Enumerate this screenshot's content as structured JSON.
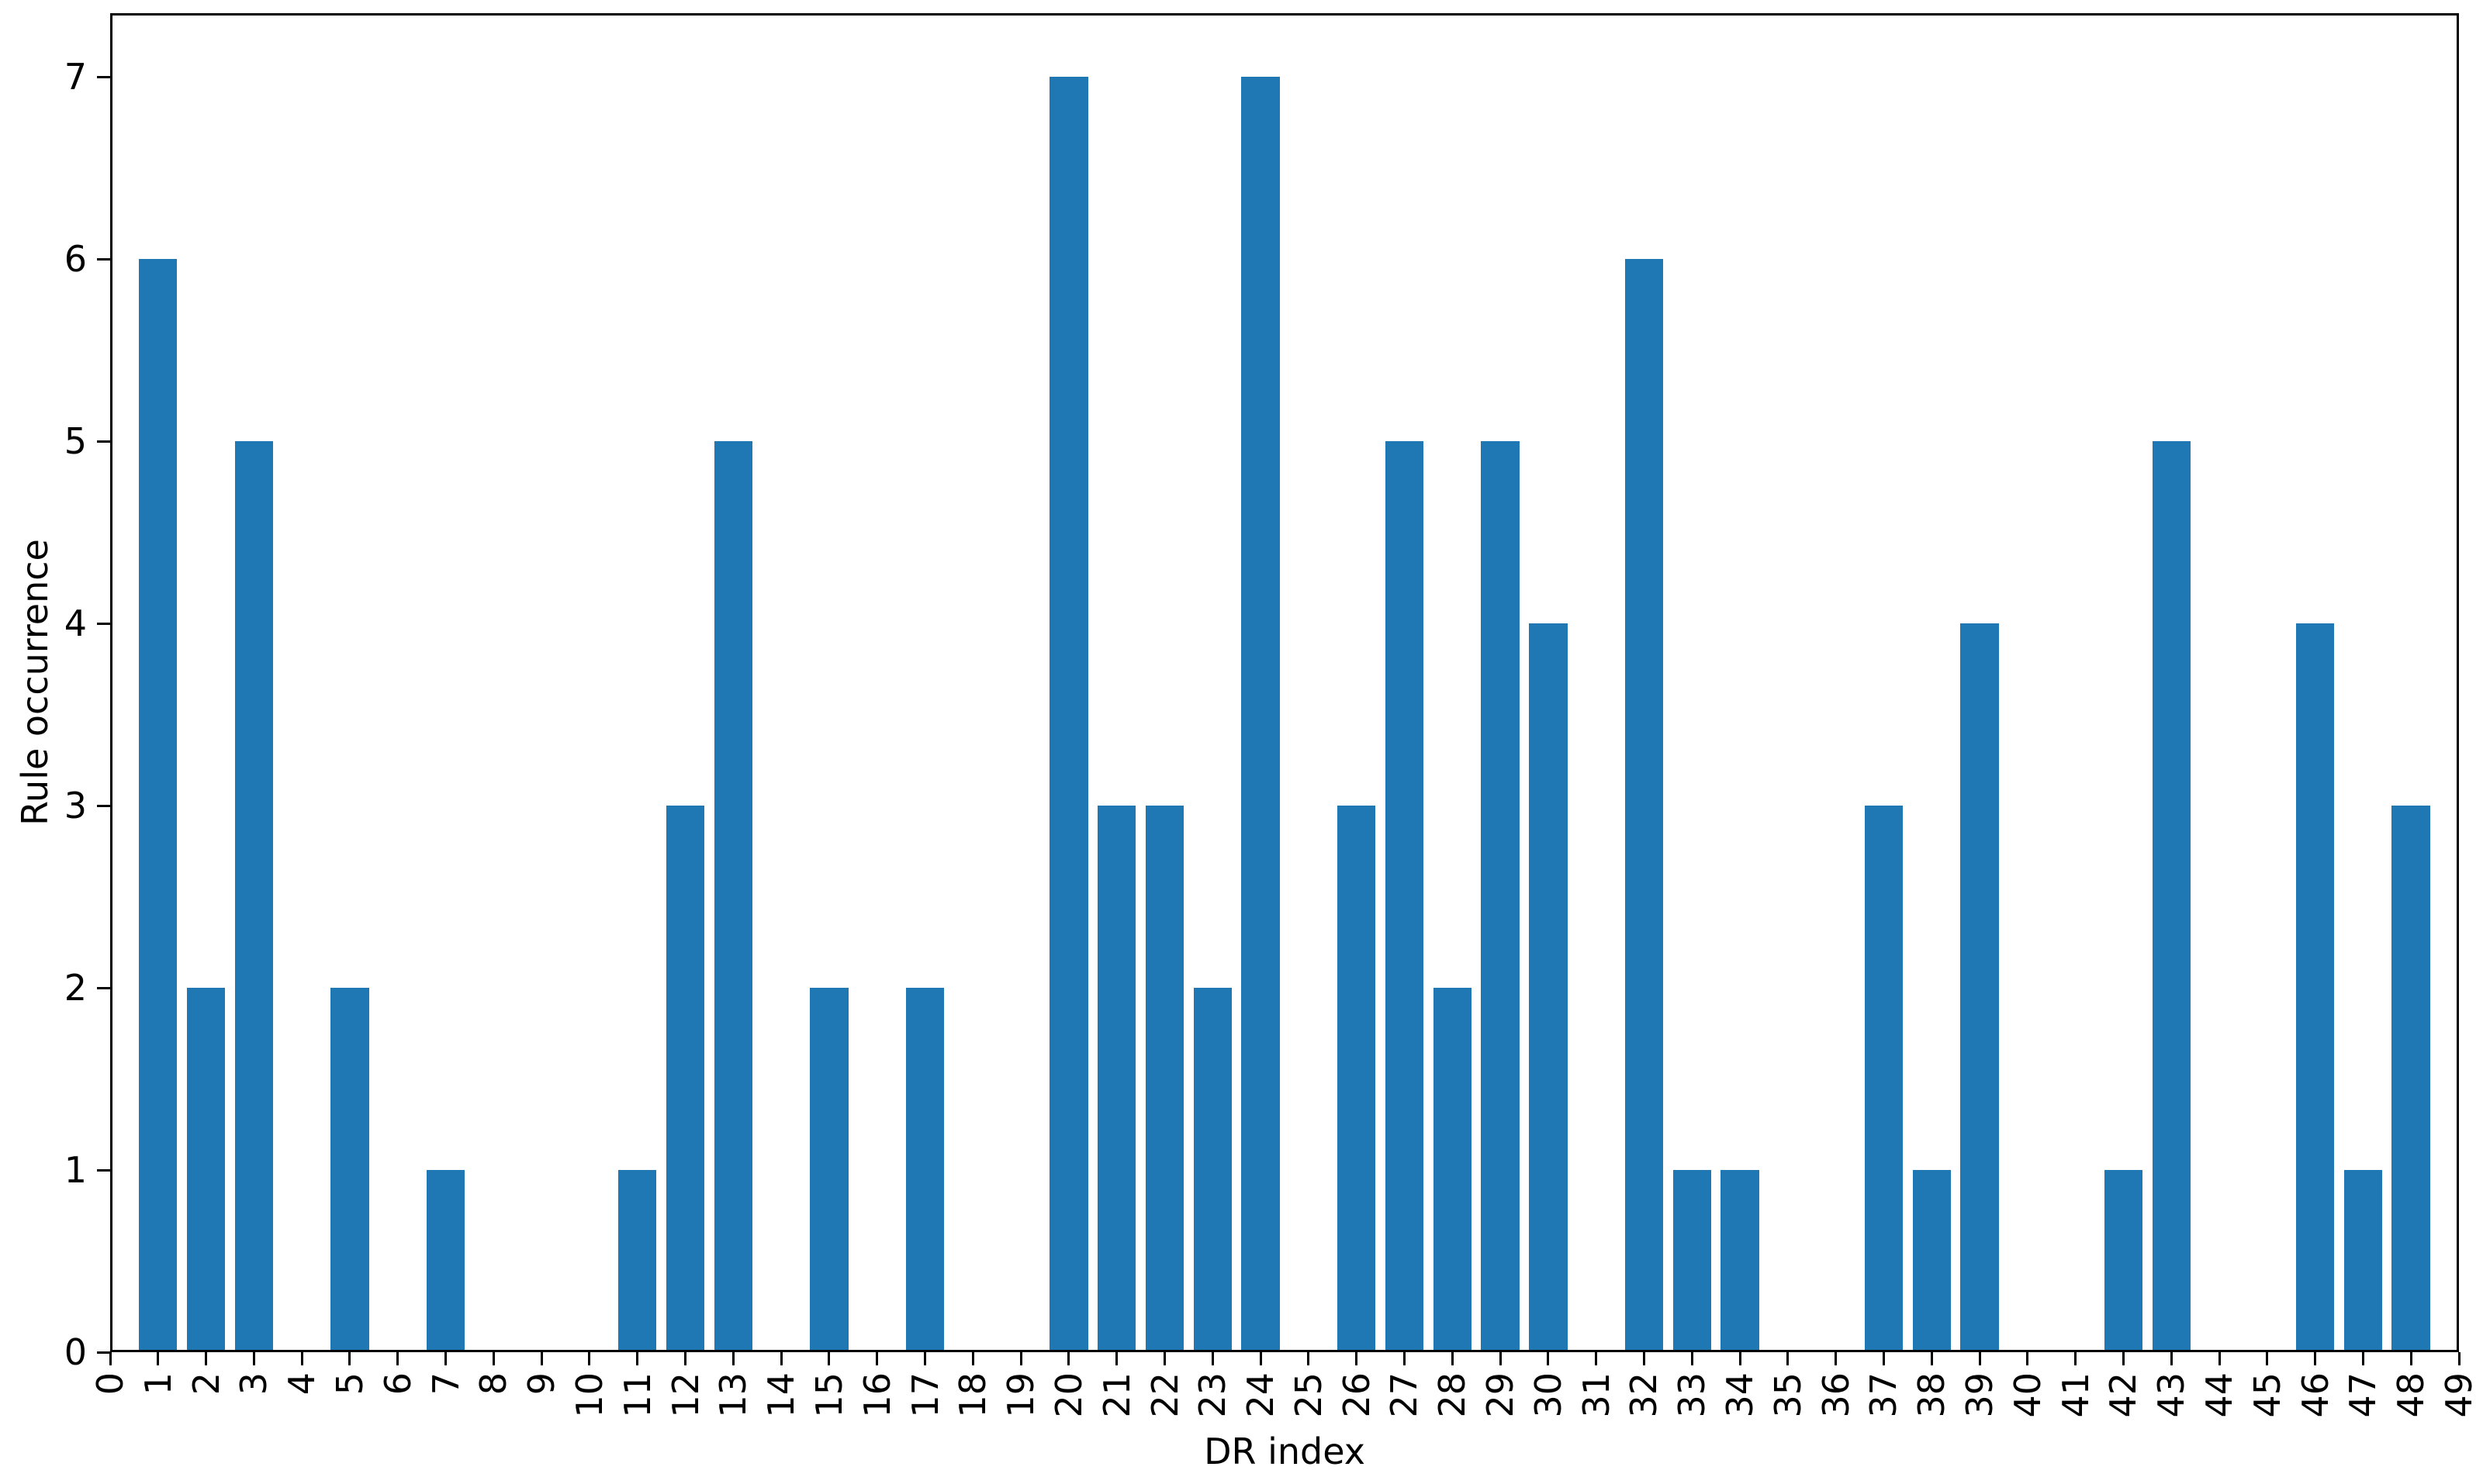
{
  "chart_data": {
    "type": "bar",
    "xlabel": "DR index",
    "ylabel": "Rule occurrence",
    "x": [
      0,
      1,
      2,
      3,
      4,
      5,
      6,
      7,
      8,
      9,
      10,
      11,
      12,
      13,
      14,
      15,
      16,
      17,
      18,
      19,
      20,
      21,
      22,
      23,
      24,
      25,
      26,
      27,
      28,
      29,
      30,
      31,
      32,
      33,
      34,
      35,
      36,
      37,
      38,
      39,
      40,
      41,
      42,
      43,
      44,
      45,
      46,
      47,
      48,
      49
    ],
    "values": [
      0,
      6,
      2,
      5,
      0,
      2,
      0,
      1,
      0,
      0,
      0,
      1,
      3,
      5,
      0,
      2,
      0,
      2,
      0,
      0,
      7,
      3,
      3,
      2,
      7,
      0,
      3,
      5,
      2,
      5,
      4,
      0,
      6,
      1,
      1,
      0,
      0,
      3,
      1,
      4,
      0,
      0,
      1,
      5,
      0,
      0,
      4,
      1,
      3,
      0
    ],
    "yticks": [
      0,
      1,
      2,
      3,
      4,
      5,
      6,
      7
    ],
    "ylim": [
      0,
      7.35
    ],
    "xlim": [
      0,
      49
    ],
    "bar_color": "#1f77b4",
    "axis_color": "#000000",
    "background_color": "#ffffff",
    "bar_width_fraction": 0.8,
    "xtick_rotation_degrees": 90,
    "grid": false,
    "legend": null,
    "title": ""
  }
}
